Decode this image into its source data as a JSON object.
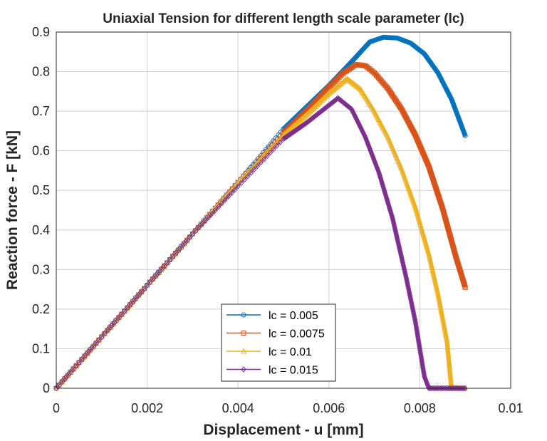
{
  "chart_data": {
    "type": "line",
    "title": "Uniaxial Tension for different length scale parameter (lc)",
    "xlabel": "Displacement - u [mm]",
    "ylabel": "Reaction force - F [kN]",
    "xlim": [
      0,
      0.01
    ],
    "ylim": [
      0,
      0.9
    ],
    "x_ticks": [
      0,
      0.002,
      0.004,
      0.006,
      0.008,
      0.01
    ],
    "x_tick_labels": [
      "0",
      "0.002",
      "0.004",
      "0.006",
      "0.008",
      "0.01"
    ],
    "y_ticks": [
      0,
      0.1,
      0.2,
      0.3,
      0.4,
      0.5,
      0.6,
      0.7,
      0.8,
      0.9
    ],
    "y_tick_labels": [
      "0",
      "0.1",
      "0.2",
      "0.3",
      "0.4",
      "0.5",
      "0.6",
      "0.7",
      "0.8",
      "0.9"
    ],
    "grid": true,
    "legend_position": "bottom-center",
    "series": [
      {
        "name": "lc = 0.005",
        "color": "#0072BD",
        "marker": "circle",
        "x": [
          0,
          0.001,
          0.002,
          0.003,
          0.004,
          0.005,
          0.0055,
          0.006,
          0.0065,
          0.0069,
          0.0072,
          0.0075,
          0.0078,
          0.0081,
          0.0084,
          0.0087,
          0.009
        ],
        "y": [
          0,
          0.13,
          0.26,
          0.39,
          0.52,
          0.655,
          0.71,
          0.765,
          0.825,
          0.875,
          0.887,
          0.885,
          0.872,
          0.845,
          0.797,
          0.73,
          0.638
        ]
      },
      {
        "name": "lc = 0.0075",
        "color": "#D95319",
        "marker": "square",
        "x": [
          0,
          0.001,
          0.002,
          0.003,
          0.004,
          0.005,
          0.0055,
          0.006,
          0.0063,
          0.0066,
          0.0068,
          0.007,
          0.0073,
          0.0076,
          0.0079,
          0.0082,
          0.0085,
          0.0088,
          0.009
        ],
        "y": [
          0,
          0.13,
          0.26,
          0.39,
          0.52,
          0.645,
          0.7,
          0.76,
          0.795,
          0.818,
          0.815,
          0.797,
          0.757,
          0.705,
          0.64,
          0.56,
          0.455,
          0.33,
          0.255
        ]
      },
      {
        "name": "lc = 0.01",
        "color": "#EDB120",
        "marker": "triangle",
        "x": [
          0,
          0.001,
          0.002,
          0.003,
          0.004,
          0.005,
          0.0055,
          0.006,
          0.0064,
          0.0067,
          0.007,
          0.0073,
          0.0076,
          0.0079,
          0.0082,
          0.0084,
          0.0086,
          0.00865,
          0.0087,
          0.009
        ],
        "y": [
          0,
          0.13,
          0.26,
          0.39,
          0.52,
          0.64,
          0.69,
          0.745,
          0.782,
          0.755,
          0.7,
          0.635,
          0.555,
          0.46,
          0.34,
          0.24,
          0.12,
          0.06,
          0,
          0
        ]
      },
      {
        "name": "lc = 0.015",
        "color": "#7E2F8E",
        "marker": "diamond",
        "x": [
          0,
          0.001,
          0.002,
          0.003,
          0.004,
          0.005,
          0.0055,
          0.006,
          0.0062,
          0.0065,
          0.0068,
          0.0071,
          0.0074,
          0.0077,
          0.0079,
          0.008,
          0.0081,
          0.0082,
          0.009
        ],
        "y": [
          0,
          0.13,
          0.26,
          0.39,
          0.51,
          0.63,
          0.67,
          0.715,
          0.733,
          0.705,
          0.635,
          0.545,
          0.43,
          0.28,
          0.17,
          0.1,
          0.03,
          0,
          0
        ]
      }
    ]
  }
}
